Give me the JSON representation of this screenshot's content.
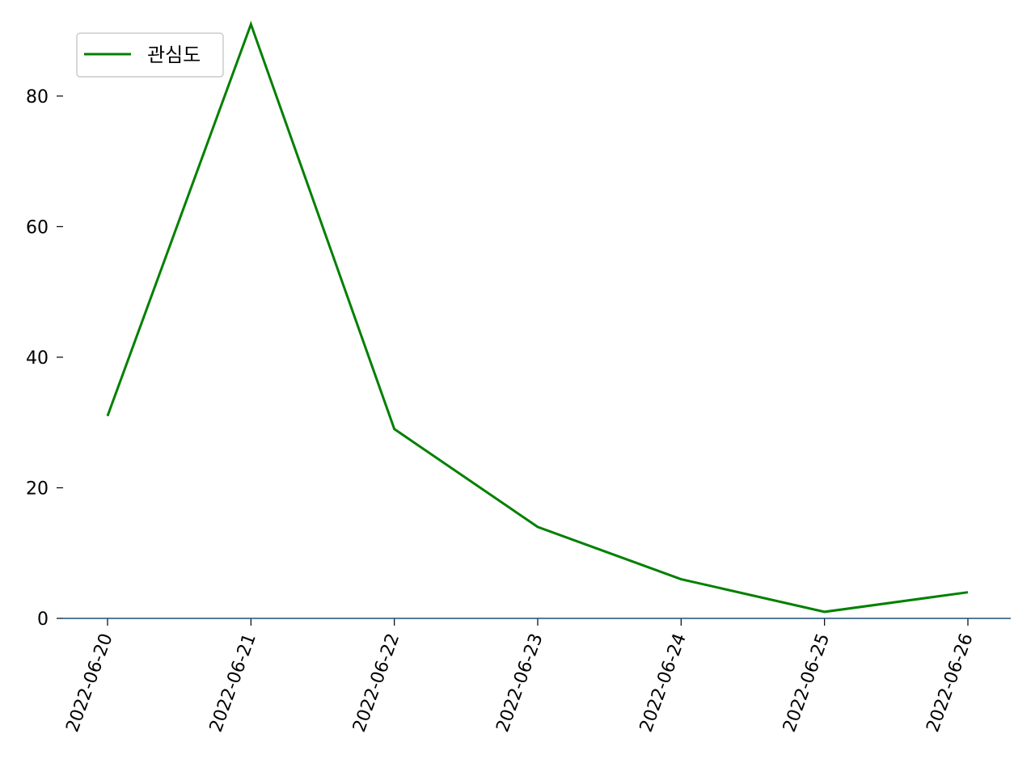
{
  "chart_data": {
    "type": "line",
    "title": "",
    "xlabel": "",
    "ylabel": "",
    "x": [
      "2022-06-20",
      "2022-06-21",
      "2022-06-22",
      "2022-06-23",
      "2022-06-24",
      "2022-06-25",
      "2022-06-26"
    ],
    "series": [
      {
        "name": "관심도",
        "color": "#008000",
        "values": [
          31,
          91,
          29,
          14,
          6,
          1,
          4
        ]
      }
    ],
    "ylim": [
      0,
      91
    ],
    "yticks": [
      0,
      20,
      40,
      60,
      80
    ],
    "baseline": {
      "value": 0,
      "color": "#1f4e79"
    },
    "grid": false,
    "legend": {
      "position": "top-left",
      "entries": [
        "관심도"
      ]
    }
  }
}
